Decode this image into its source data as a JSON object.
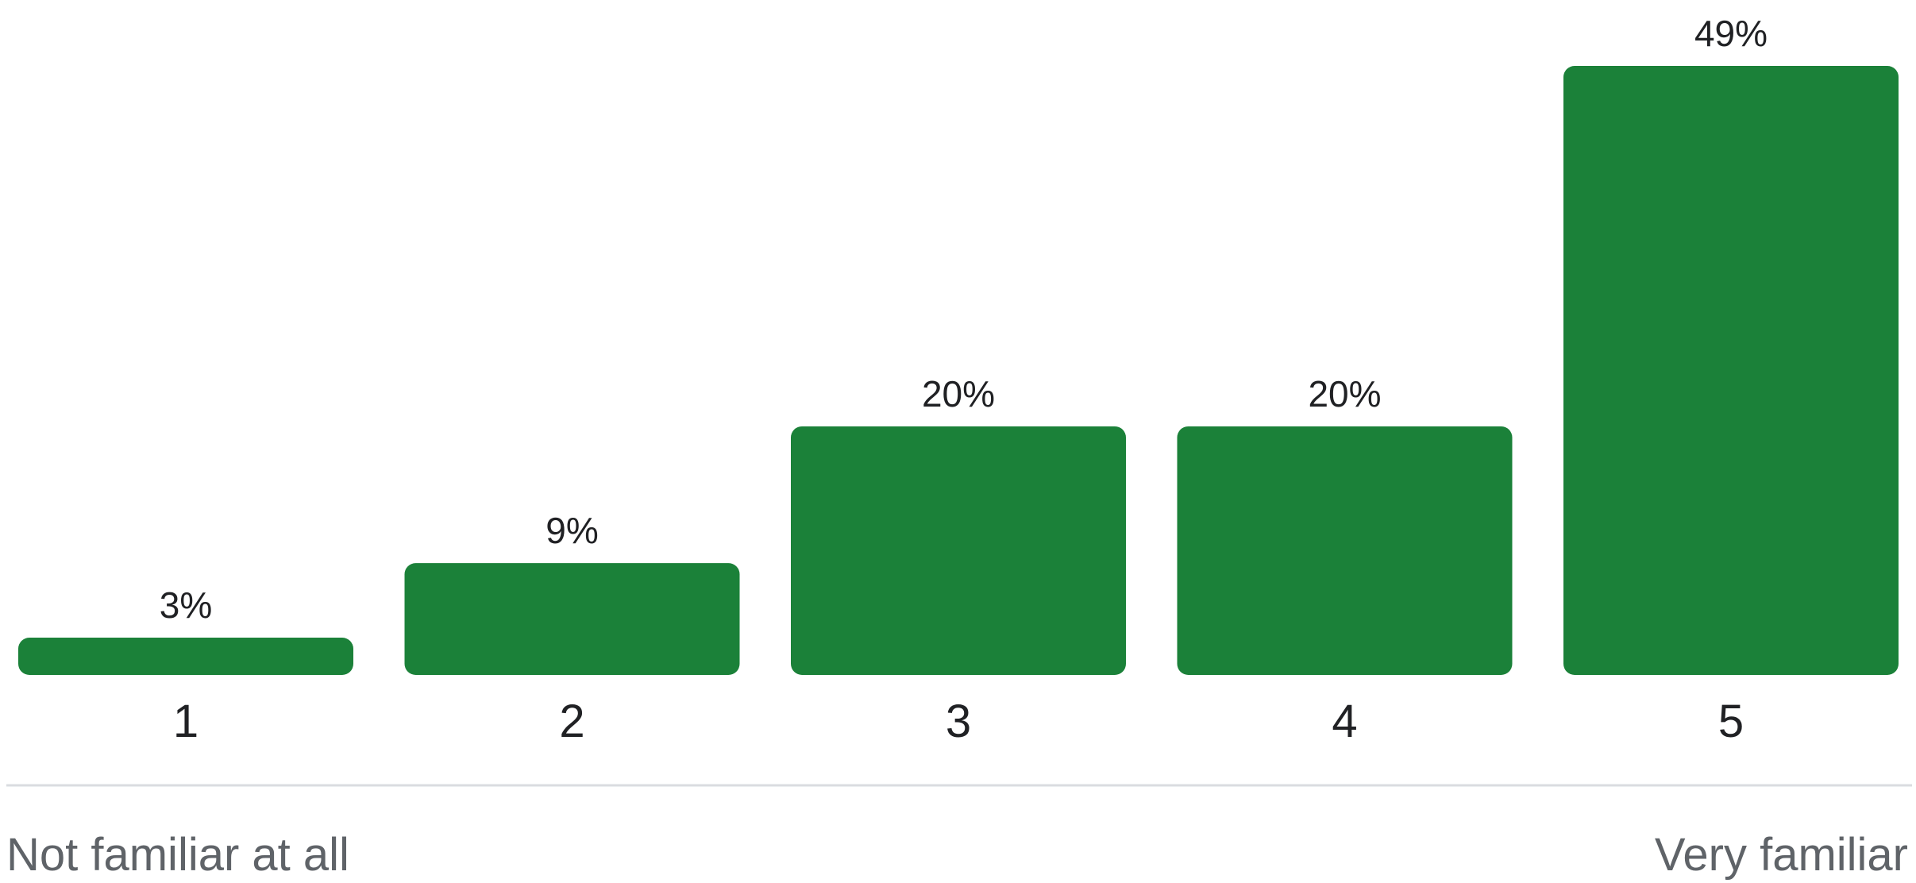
{
  "chart_data": {
    "type": "bar",
    "categories": [
      "1",
      "2",
      "3",
      "4",
      "5"
    ],
    "values": [
      3,
      9,
      20,
      20,
      49
    ],
    "value_labels": [
      "3%",
      "9%",
      "20%",
      "20%",
      "49%"
    ],
    "ylim": [
      0,
      49
    ],
    "grid": false,
    "bar_color": "#1b8139",
    "baseline_color": "#dadce0",
    "scale_labels": {
      "min": "Not familiar at all",
      "max": "Very familiar"
    }
  }
}
